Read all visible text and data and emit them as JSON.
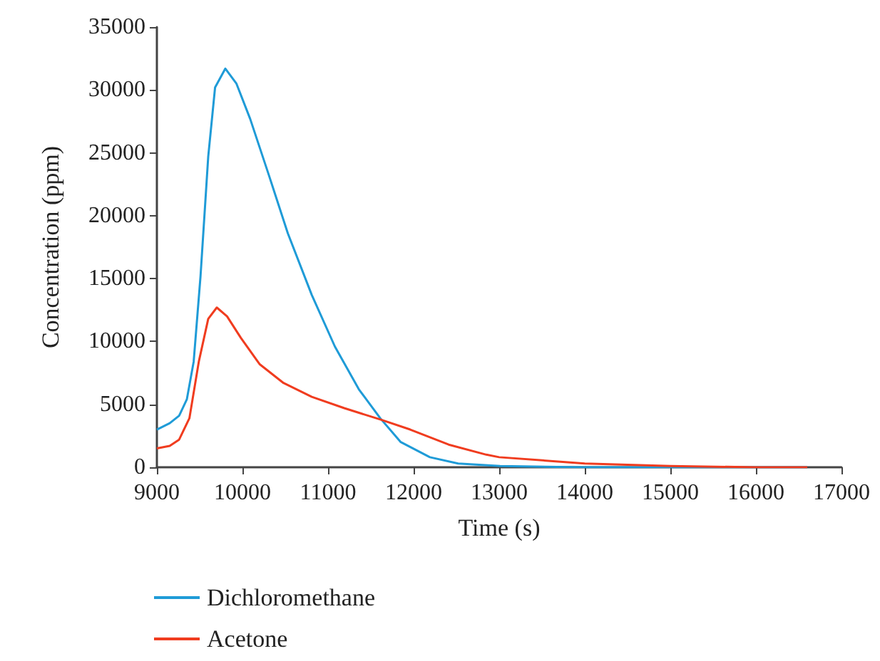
{
  "chart_data": {
    "type": "line",
    "xlabel": "Time (s)",
    "ylabel": "Concentration (ppm)",
    "xlim": [
      9000,
      17000
    ],
    "xticks": [
      9000,
      10000,
      11000,
      12000,
      13000,
      14000,
      15000,
      16000,
      17000
    ],
    "ylim": [
      0,
      35000
    ],
    "yticks": [
      0,
      5000,
      10000,
      15000,
      20000,
      25000,
      30000,
      35000
    ],
    "grid": false,
    "legend": "bottom",
    "marker": "none",
    "line_style": "solid",
    "series": [
      {
        "name": "Dichloromethane",
        "color": "#1f9bd7",
        "x": [
          9000,
          9150,
          9260,
          9350,
          9430,
          9510,
          9600,
          9680,
          9800,
          9930,
          10090,
          10310,
          10530,
          10810,
          11080,
          11360,
          11610,
          11850,
          12190,
          12520,
          13010,
          14000,
          15000,
          16000,
          16600
        ],
        "values": [
          3000,
          3500,
          4100,
          5400,
          8400,
          15200,
          24700,
          30200,
          31700,
          30500,
          27700,
          23200,
          18600,
          13700,
          9600,
          6200,
          3900,
          2000,
          800,
          300,
          100,
          0,
          0,
          0,
          0
        ]
      },
      {
        "name": "Acetone",
        "color": "#f03c1f",
        "x": [
          9000,
          9150,
          9260,
          9380,
          9490,
          9600,
          9700,
          9820,
          9980,
          10200,
          10480,
          10810,
          11190,
          11610,
          11960,
          12410,
          12850,
          13000,
          14000,
          15000,
          16000,
          16600
        ],
        "values": [
          1500,
          1700,
          2200,
          3900,
          8400,
          11800,
          12700,
          12000,
          10300,
          8200,
          6700,
          5600,
          4700,
          3800,
          3000,
          1800,
          1000,
          800,
          300,
          100,
          0,
          0
        ]
      }
    ]
  }
}
